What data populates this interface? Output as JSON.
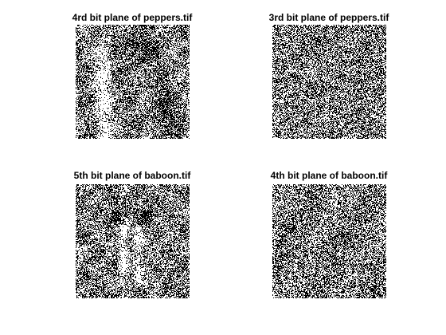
{
  "figure": {
    "background": "#ffffff",
    "panels": [
      {
        "title": "4rd bit plane of peppers.tif",
        "image_kind": "binary-noise",
        "structure": "peppers"
      },
      {
        "title": "3rd bit plane of peppers.tif",
        "image_kind": "binary-noise",
        "structure": "none"
      },
      {
        "title": "5th bit plane of baboon.tif",
        "image_kind": "binary-noise",
        "structure": "baboon"
      },
      {
        "title": "4th bit plane of baboon.tif",
        "image_kind": "binary-noise",
        "structure": "faint"
      }
    ]
  }
}
